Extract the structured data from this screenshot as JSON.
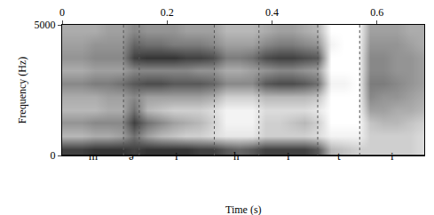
{
  "chart_data": {
    "type": "heatmap",
    "x_label": "Time (s)",
    "y_label": "Frequency (Hz)",
    "xlim": [
      0,
      0.69
    ],
    "xticks": [
      0,
      0.2,
      0.4,
      0.6
    ],
    "ylim": [
      0,
      5000
    ],
    "yticks": [
      0,
      5000
    ],
    "zlim": [
      0,
      1
    ],
    "time_bins": [
      0.0125,
      0.0375,
      0.0625,
      0.0875,
      0.1125,
      0.1375,
      0.1625,
      0.1875,
      0.2125,
      0.2375,
      0.2625,
      0.2875,
      0.3125,
      0.3375,
      0.3625,
      0.3875,
      0.4125,
      0.4375,
      0.4625,
      0.4875,
      0.5125,
      0.5375,
      0.5625,
      0.5875,
      0.6125,
      0.6375,
      0.6625,
      0.6875
    ],
    "frequency_bins": [
      250,
      750,
      1250,
      1750,
      2250,
      2750,
      3250,
      3750,
      4250,
      4750
    ],
    "intensity": [
      [
        0.8,
        0.8,
        0.85,
        0.85,
        0.85,
        0.8,
        0.85,
        0.85,
        0.85,
        0.85,
        0.8,
        0.8,
        0.7,
        0.65,
        0.7,
        0.8,
        0.8,
        0.8,
        0.8,
        0.7,
        0.3,
        0.25,
        0.2,
        0.2,
        0.2,
        0.2,
        0.2,
        0.15
      ],
      [
        0.3,
        0.3,
        0.35,
        0.35,
        0.4,
        0.6,
        0.4,
        0.3,
        0.25,
        0.2,
        0.2,
        0.15,
        0.1,
        0.1,
        0.1,
        0.2,
        0.2,
        0.2,
        0.2,
        0.15,
        0.05,
        0.05,
        0.05,
        0.2,
        0.2,
        0.2,
        0.2,
        0.15
      ],
      [
        0.45,
        0.45,
        0.5,
        0.5,
        0.5,
        0.8,
        0.6,
        0.5,
        0.4,
        0.35,
        0.3,
        0.2,
        0.05,
        0.05,
        0.05,
        0.2,
        0.2,
        0.25,
        0.3,
        0.2,
        0,
        0,
        0,
        0.25,
        0.3,
        0.3,
        0.25,
        0.2
      ],
      [
        0.3,
        0.3,
        0.3,
        0.35,
        0.35,
        0.6,
        0.3,
        0.25,
        0.2,
        0.2,
        0.2,
        0.15,
        0.05,
        0.05,
        0.05,
        0.15,
        0.15,
        0.15,
        0.15,
        0.1,
        0,
        0,
        0,
        0.4,
        0.4,
        0.35,
        0.35,
        0.3
      ],
      [
        0.35,
        0.35,
        0.35,
        0.4,
        0.4,
        0.5,
        0.4,
        0.4,
        0.4,
        0.4,
        0.4,
        0.35,
        0.2,
        0.2,
        0.2,
        0.3,
        0.3,
        0.3,
        0.3,
        0.25,
        0,
        0,
        0,
        0.5,
        0.45,
        0.45,
        0.4,
        0.35
      ],
      [
        0.5,
        0.5,
        0.55,
        0.55,
        0.6,
        0.7,
        0.75,
        0.75,
        0.7,
        0.7,
        0.7,
        0.65,
        0.5,
        0.5,
        0.5,
        0.7,
        0.75,
        0.75,
        0.7,
        0.6,
        0.05,
        0.05,
        0,
        0.55,
        0.55,
        0.5,
        0.45,
        0.4
      ],
      [
        0.35,
        0.35,
        0.4,
        0.4,
        0.4,
        0.5,
        0.5,
        0.5,
        0.5,
        0.5,
        0.45,
        0.45,
        0.35,
        0.35,
        0.4,
        0.45,
        0.5,
        0.5,
        0.45,
        0.4,
        0,
        0,
        0,
        0.5,
        0.5,
        0.45,
        0.45,
        0.4
      ],
      [
        0.45,
        0.45,
        0.5,
        0.5,
        0.5,
        0.8,
        0.85,
        0.85,
        0.85,
        0.8,
        0.8,
        0.75,
        0.55,
        0.55,
        0.6,
        0.75,
        0.8,
        0.8,
        0.75,
        0.7,
        0,
        0,
        0,
        0.5,
        0.5,
        0.45,
        0.45,
        0.4
      ],
      [
        0.4,
        0.4,
        0.45,
        0.45,
        0.45,
        0.65,
        0.6,
        0.6,
        0.55,
        0.55,
        0.55,
        0.5,
        0.4,
        0.4,
        0.4,
        0.5,
        0.55,
        0.55,
        0.5,
        0.45,
        0.05,
        0,
        0,
        0.45,
        0.45,
        0.45,
        0.4,
        0.35
      ],
      [
        0.35,
        0.35,
        0.35,
        0.4,
        0.4,
        0.5,
        0.45,
        0.45,
        0.45,
        0.4,
        0.4,
        0.4,
        0.3,
        0.3,
        0.3,
        0.35,
        0.4,
        0.4,
        0.35,
        0.3,
        0,
        0,
        0,
        0.4,
        0.4,
        0.4,
        0.35,
        0.35
      ]
    ],
    "segments": [
      {
        "label": "m",
        "start": 0,
        "end": 0.117
      },
      {
        "label": "ə",
        "start": 0.117,
        "end": 0.147
      },
      {
        "label": "i",
        "start": 0.147,
        "end": 0.29
      },
      {
        "label": "h",
        "start": 0.29,
        "end": 0.375
      },
      {
        "label": "i",
        "start": 0.375,
        "end": 0.487
      },
      {
        "label": "t",
        "start": 0.487,
        "end": 0.567
      },
      {
        "label": "i",
        "start": 0.567,
        "end": 0.69
      }
    ]
  }
}
